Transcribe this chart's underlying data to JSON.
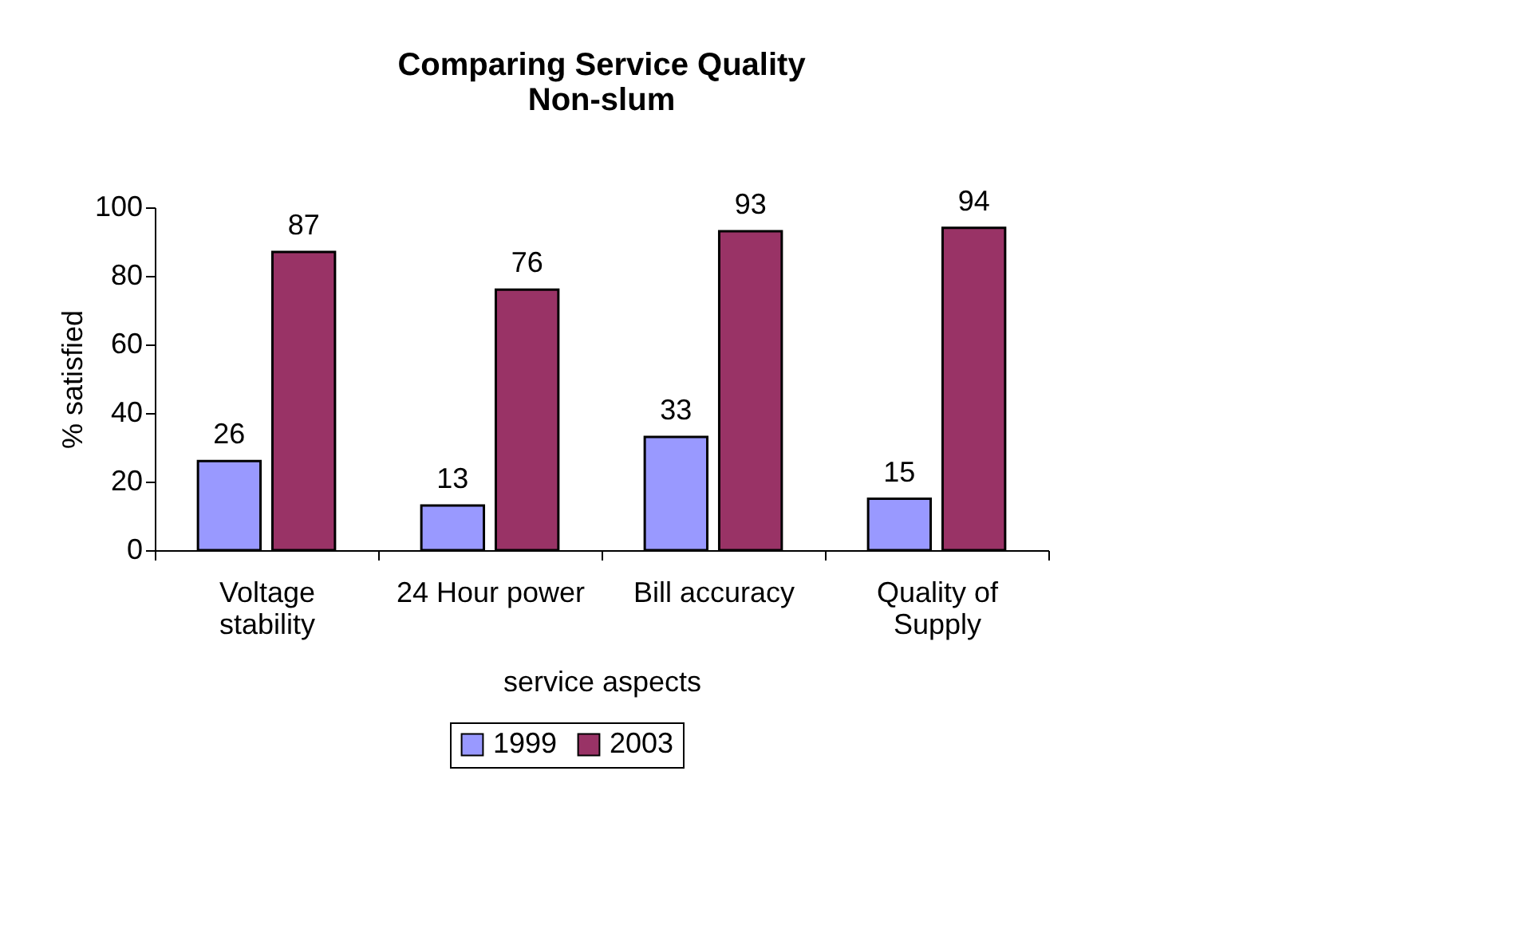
{
  "chart_data": {
    "type": "bar",
    "title": "Comparing Service Quality\nNon-slum",
    "xlabel": "service aspects",
    "ylabel": "% satisfied",
    "categories": [
      "Voltage\nstability",
      "24 Hour power",
      "Bill accuracy",
      "Quality of\nSupply"
    ],
    "series": [
      {
        "name": "1999",
        "color": "#9999ff",
        "values": [
          26,
          13,
          33,
          15
        ]
      },
      {
        "name": "2003",
        "color": "#993366",
        "values": [
          87,
          76,
          93,
          94
        ]
      }
    ],
    "ylim": [
      0,
      100
    ],
    "yticks": [
      0,
      20,
      40,
      60,
      80,
      100
    ],
    "grid": false,
    "legend": "bottom",
    "data_labels": true
  }
}
